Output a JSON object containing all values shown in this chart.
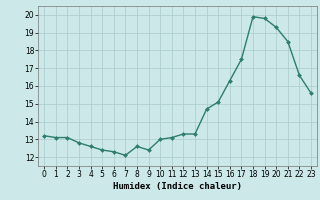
{
  "x": [
    0,
    1,
    2,
    3,
    4,
    5,
    6,
    7,
    8,
    9,
    10,
    11,
    12,
    13,
    14,
    15,
    16,
    17,
    18,
    19,
    20,
    21,
    22,
    23
  ],
  "y": [
    13.2,
    13.1,
    13.1,
    12.8,
    12.6,
    12.4,
    12.3,
    12.1,
    12.6,
    12.4,
    13.0,
    13.1,
    13.3,
    13.3,
    14.7,
    15.1,
    16.3,
    17.5,
    19.9,
    19.8,
    19.3,
    18.5,
    16.6,
    15.6
  ],
  "xlabel": "Humidex (Indice chaleur)",
  "xlim": [
    -0.5,
    23.5
  ],
  "ylim": [
    11.5,
    20.5
  ],
  "yticks": [
    12,
    13,
    14,
    15,
    16,
    17,
    18,
    19,
    20
  ],
  "xticks": [
    0,
    1,
    2,
    3,
    4,
    5,
    6,
    7,
    8,
    9,
    10,
    11,
    12,
    13,
    14,
    15,
    16,
    17,
    18,
    19,
    20,
    21,
    22,
    23
  ],
  "line_color": "#2e7d6e",
  "marker_color": "#2e7d6e",
  "bg_color": "#cce8e8",
  "grid_color": "#aacccc",
  "tick_fontsize": 5.5,
  "xlabel_fontsize": 6.5,
  "marker": "D",
  "marker_size": 2.0,
  "linewidth": 1.0
}
